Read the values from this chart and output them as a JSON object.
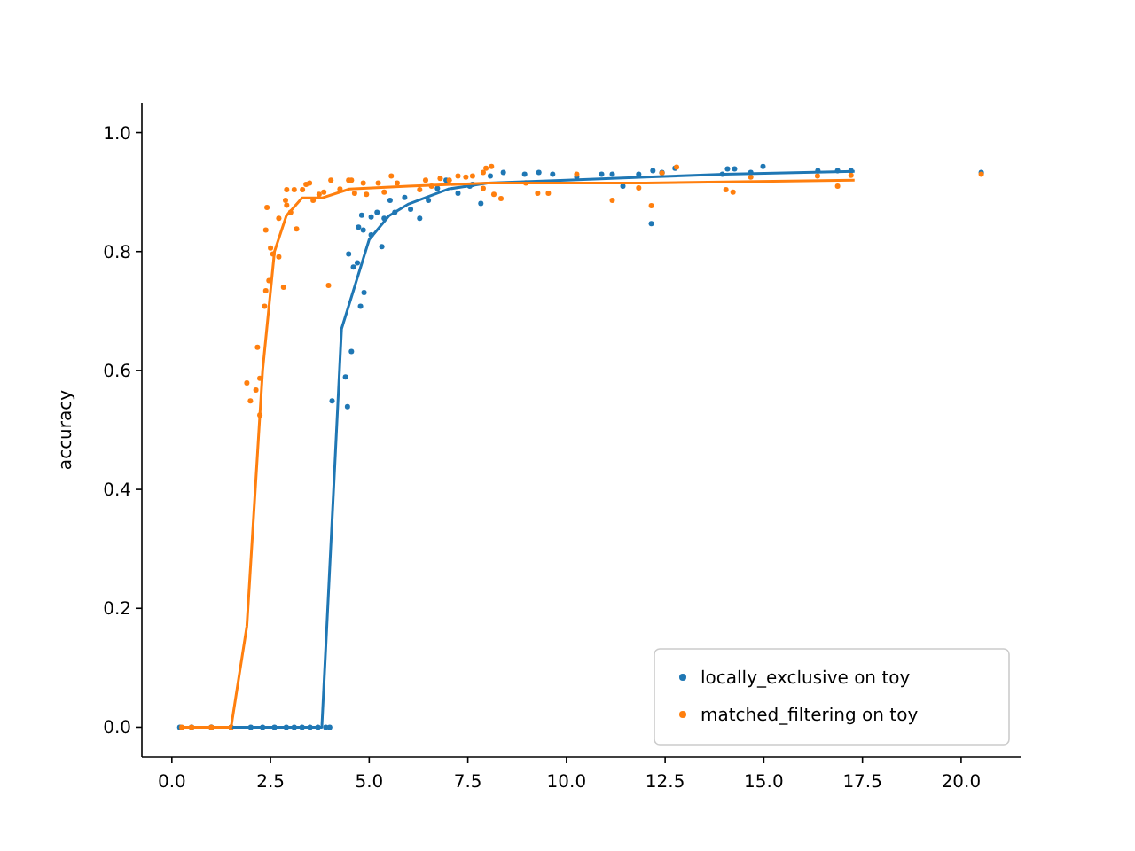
{
  "chart_data": {
    "type": "scatter",
    "ylabel": "accuracy",
    "xlim": [
      -0.76,
      21.53
    ],
    "ylim": [
      -0.05,
      1.05
    ],
    "xticks": [
      {
        "value": 0,
        "label": "0.0"
      },
      {
        "value": 2.5,
        "label": "2.5"
      },
      {
        "value": 5,
        "label": "5.0"
      },
      {
        "value": 7.5,
        "label": "7.5"
      },
      {
        "value": 10,
        "label": "10.0"
      },
      {
        "value": 12.5,
        "label": "12.5"
      },
      {
        "value": 15,
        "label": "15.0"
      },
      {
        "value": 17.5,
        "label": "17.5"
      },
      {
        "value": 20,
        "label": "20.0"
      }
    ],
    "yticks": [
      {
        "value": 0,
        "label": "0.0"
      },
      {
        "value": 0.2,
        "label": "0.2"
      },
      {
        "value": 0.4,
        "label": "0.4"
      },
      {
        "value": 0.6,
        "label": "0.6"
      },
      {
        "value": 0.8,
        "label": "0.8"
      },
      {
        "value": 1,
        "label": "1.0"
      }
    ],
    "grid": false,
    "legend": "bottom right",
    "series": [
      {
        "marker": "circle",
        "name": "locally_exclusive on toy",
        "color": "#1f77b4",
        "x": [
          0.2,
          0.5,
          1.0,
          1.5,
          2.0,
          2.3,
          2.6,
          2.9,
          3.1,
          3.3,
          3.5,
          3.7,
          3.9,
          4.0,
          4.06,
          4.45,
          4.4,
          4.55,
          4.48,
          4.6,
          4.7,
          4.78,
          4.87,
          4.73,
          4.81,
          4.85,
          5.05,
          5.2,
          5.05,
          5.32,
          5.38,
          5.53,
          5.65,
          6.05,
          6.28,
          5.9,
          6.5,
          6.73,
          6.95,
          7.25,
          7.55,
          7.83,
          8.07,
          8.4,
          8.94,
          9.3,
          9.65,
          7.62,
          10.26,
          10.89,
          11.16,
          11.43,
          11.83,
          12.15,
          12.19,
          12.42,
          12.75,
          13.95,
          14.08,
          14.26,
          14.67,
          14.98,
          16.37,
          16.87,
          17.21,
          20.51
        ],
        "values": [
          0,
          0,
          0,
          0,
          0,
          0,
          0,
          0,
          0,
          0,
          0,
          0,
          0,
          0,
          0.549,
          0.539,
          0.589,
          0.632,
          0.796,
          0.774,
          0.781,
          0.708,
          0.731,
          0.841,
          0.861,
          0.836,
          0.858,
          0.866,
          0.828,
          0.808,
          0.856,
          0.886,
          0.866,
          0.871,
          0.856,
          0.891,
          0.886,
          0.906,
          0.92,
          0.898,
          0.91,
          0.881,
          0.927,
          0.933,
          0.93,
          0.933,
          0.93,
          0.913,
          0.925,
          0.93,
          0.93,
          0.91,
          0.93,
          0.847,
          0.936,
          0.933,
          0.94,
          0.93,
          0.939,
          0.939,
          0.933,
          0.943,
          0.936,
          0.936,
          0.936,
          0.933
        ]
      },
      {
        "marker": "circle",
        "name": "matched_filtering on toy",
        "color": "#ff7f0e",
        "x": [
          0.25,
          0.5,
          1.0,
          1.5,
          1.9,
          1.99,
          2.13,
          2.17,
          2.23,
          2.23,
          2.35,
          2.38,
          2.46,
          2.38,
          2.5,
          2.41,
          2.56,
          2.71,
          2.83,
          2.71,
          2.91,
          3.1,
          2.88,
          2.91,
          3.16,
          3.01,
          3.31,
          3.4,
          3.49,
          3.58,
          3.73,
          3.97,
          4.03,
          3.85,
          4.26,
          4.48,
          4.55,
          4.63,
          4.85,
          4.93,
          5.23,
          5.38,
          5.56,
          5.71,
          6.28,
          6.43,
          6.58,
          6.8,
          7.03,
          7.25,
          7.45,
          7.62,
          7.89,
          7.96,
          8.1,
          8.16,
          8.34,
          7.89,
          8.97,
          9.27,
          9.54,
          10.26,
          11.16,
          11.83,
          12.15,
          12.42,
          12.79,
          14.04,
          14.22,
          14.67,
          16.36,
          16.87,
          17.21,
          20.51
        ],
        "values": [
          0,
          0,
          0,
          0,
          0.579,
          0.549,
          0.567,
          0.639,
          0.587,
          0.525,
          0.708,
          0.734,
          0.751,
          0.836,
          0.806,
          0.874,
          0.796,
          0.791,
          0.74,
          0.856,
          0.904,
          0.904,
          0.886,
          0.878,
          0.838,
          0.866,
          0.904,
          0.913,
          0.915,
          0.886,
          0.896,
          0.743,
          0.92,
          0.9,
          0.905,
          0.92,
          0.92,
          0.898,
          0.915,
          0.896,
          0.915,
          0.9,
          0.927,
          0.915,
          0.904,
          0.92,
          0.91,
          0.923,
          0.92,
          0.927,
          0.925,
          0.927,
          0.933,
          0.94,
          0.943,
          0.896,
          0.889,
          0.906,
          0.915,
          0.898,
          0.898,
          0.93,
          0.886,
          0.907,
          0.877,
          0.932,
          0.942,
          0.904,
          0.9,
          0.925,
          0.927,
          0.91,
          0.928,
          0.93
        ]
      },
      {
        "type": "line",
        "marker": "none",
        "color": "#1f77b4",
        "x": [
          0.2,
          3.8,
          4.3,
          5.0,
          5.5,
          6.0,
          7.0,
          8.0,
          10.0,
          12.0,
          14.0,
          17.3
        ],
        "values": [
          0,
          0,
          0.67,
          0.82,
          0.86,
          0.88,
          0.905,
          0.915,
          0.92,
          0.925,
          0.93,
          0.935
        ]
      },
      {
        "type": "line",
        "marker": "none",
        "color": "#ff7f0e",
        "x": [
          0.2,
          1.5,
          1.9,
          2.3,
          2.6,
          2.9,
          3.3,
          3.8,
          4.5,
          6.0,
          8.0,
          12.0,
          17.3
        ],
        "values": [
          0,
          0,
          0.17,
          0.6,
          0.8,
          0.86,
          0.89,
          0.89,
          0.905,
          0.91,
          0.915,
          0.915,
          0.92
        ]
      }
    ]
  }
}
